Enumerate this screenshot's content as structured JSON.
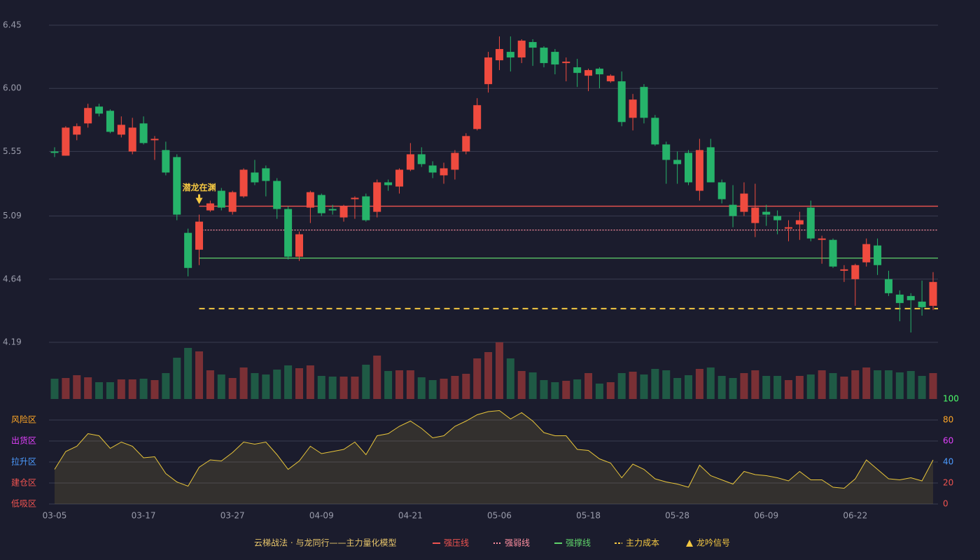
{
  "chart_data": {
    "type": "candlestick",
    "title": "云梯战法 · 与龙同行——主力量化模型",
    "categories": [
      "03-05",
      null,
      null,
      null,
      null,
      null,
      null,
      null,
      "03-17",
      null,
      null,
      null,
      null,
      null,
      null,
      null,
      "03-27",
      null,
      null,
      null,
      null,
      null,
      null,
      null,
      "04-09",
      null,
      null,
      null,
      null,
      null,
      null,
      null,
      "04-21",
      null,
      null,
      null,
      null,
      null,
      null,
      null,
      "05-06",
      null,
      null,
      null,
      null,
      null,
      null,
      null,
      "05-18",
      null,
      null,
      null,
      null,
      null,
      null,
      null,
      "05-28",
      null,
      null,
      null,
      null,
      null,
      null,
      null,
      "06-09",
      null,
      null,
      null,
      null,
      null,
      null,
      null,
      "06-22",
      null,
      null,
      null,
      null,
      null,
      null,
      null
    ],
    "open": [
      5.55,
      5.52,
      5.67,
      5.75,
      5.87,
      5.84,
      5.67,
      5.55,
      5.75,
      5.63,
      5.56,
      5.51,
      4.97,
      4.85,
      5.13,
      5.27,
      5.12,
      5.23,
      5.4,
      5.43,
      5.34,
      5.14,
      4.8,
      5.15,
      5.24,
      5.14,
      5.08,
      5.21,
      5.23,
      5.12,
      5.33,
      5.3,
      5.42,
      5.53,
      5.45,
      5.38,
      5.42,
      5.55,
      5.71,
      6.03,
      6.2,
      6.26,
      6.22,
      6.33,
      6.29,
      6.26,
      6.18,
      6.15,
      6.09,
      6.14,
      6.05,
      6.05,
      5.79,
      6.01,
      5.79,
      5.6,
      5.49,
      5.54,
      5.27,
      5.58,
      5.33,
      5.17,
      5.12,
      5.04,
      5.12,
      5.09,
      5.0,
      5.03,
      5.15,
      4.92,
      4.92,
      4.7,
      4.64,
      4.76,
      4.88,
      4.64,
      4.53,
      4.52,
      4.48,
      4.45
    ],
    "high": [
      5.58,
      5.73,
      5.75,
      5.89,
      5.89,
      5.85,
      5.8,
      5.79,
      5.8,
      5.66,
      5.62,
      5.53,
      5.0,
      5.1,
      5.2,
      5.29,
      5.27,
      5.43,
      5.49,
      5.45,
      5.36,
      5.16,
      4.98,
      5.27,
      5.25,
      5.17,
      5.17,
      5.23,
      5.25,
      5.35,
      5.35,
      5.43,
      5.61,
      5.58,
      5.48,
      5.47,
      5.56,
      5.68,
      5.93,
      6.26,
      6.37,
      6.37,
      6.35,
      6.35,
      6.3,
      6.28,
      6.22,
      6.21,
      6.14,
      6.15,
      6.1,
      6.12,
      5.96,
      6.03,
      5.81,
      5.62,
      5.55,
      5.56,
      5.64,
      5.64,
      5.35,
      5.31,
      5.33,
      5.32,
      5.17,
      5.13,
      5.06,
      5.12,
      5.2,
      4.95,
      4.93,
      4.74,
      4.75,
      4.93,
      4.93,
      4.7,
      4.56,
      4.54,
      4.63,
      4.69
    ],
    "low": [
      5.51,
      5.52,
      5.63,
      5.72,
      5.8,
      5.68,
      5.65,
      5.53,
      5.6,
      5.49,
      5.38,
      5.06,
      4.66,
      4.74,
      5.12,
      5.13,
      5.1,
      5.22,
      5.31,
      5.23,
      5.07,
      4.78,
      4.77,
      5.04,
      5.09,
      5.1,
      5.05,
      5.07,
      5.05,
      5.08,
      5.27,
      5.25,
      5.41,
      5.44,
      5.36,
      5.32,
      5.35,
      5.53,
      5.7,
      5.97,
      6.13,
      6.12,
      6.18,
      6.16,
      6.15,
      6.1,
      6.05,
      6.01,
      5.98,
      6.0,
      6.04,
      5.73,
      5.7,
      5.75,
      5.59,
      5.32,
      5.32,
      5.31,
      5.2,
      5.33,
      5.18,
      5.01,
      5.09,
      4.94,
      5.02,
      4.96,
      4.91,
      4.92,
      4.91,
      4.75,
      4.72,
      4.62,
      4.45,
      4.73,
      4.67,
      4.52,
      4.34,
      4.26,
      4.38,
      4.42
    ],
    "close": [
      5.54,
      5.72,
      5.73,
      5.86,
      5.82,
      5.69,
      5.74,
      5.72,
      5.61,
      5.64,
      5.4,
      5.1,
      4.72,
      5.05,
      5.18,
      5.15,
      5.26,
      5.42,
      5.33,
      5.34,
      5.14,
      4.8,
      4.96,
      5.26,
      5.11,
      5.13,
      5.16,
      5.22,
      5.06,
      5.33,
      5.31,
      5.42,
      5.53,
      5.46,
      5.4,
      5.43,
      5.54,
      5.66,
      5.88,
      6.22,
      6.28,
      6.22,
      6.34,
      6.29,
      6.18,
      6.17,
      6.19,
      6.11,
      6.13,
      6.1,
      6.09,
      5.76,
      5.92,
      5.79,
      5.6,
      5.49,
      5.46,
      5.33,
      5.56,
      5.33,
      5.21,
      5.09,
      5.25,
      5.15,
      5.1,
      5.06,
      5.01,
      5.06,
      4.93,
      4.93,
      4.73,
      4.71,
      4.74,
      4.89,
      4.74,
      4.54,
      4.47,
      4.49,
      4.44,
      4.62
    ],
    "up_color": "#ef4b3f",
    "down_color": "#26b36a",
    "volume": [
      29,
      30,
      34,
      31,
      24,
      24,
      28,
      28,
      29,
      27,
      37,
      59,
      73,
      68,
      41,
      35,
      30,
      45,
      37,
      35,
      42,
      48,
      44,
      48,
      33,
      32,
      32,
      32,
      49,
      62,
      40,
      41,
      41,
      31,
      27,
      29,
      33,
      36,
      58,
      67,
      81,
      58,
      40,
      38,
      27,
      24,
      26,
      28,
      37,
      22,
      24,
      37,
      39,
      35,
      43,
      41,
      30,
      34,
      43,
      45,
      33,
      30,
      37,
      41,
      33,
      33,
      27,
      33,
      35,
      41,
      37,
      32,
      41,
      45,
      41,
      41,
      38,
      40,
      33,
      37
    ],
    "volume_up_color": "#7a3035",
    "volume_down_color": "#1f5a45",
    "ylim": [
      4.19,
      6.45
    ],
    "yticks": [
      4.19,
      4.64,
      5.09,
      5.55,
      {
        "value": 6,
        "label": "6.00"
      },
      6.45
    ],
    "grid": true,
    "levels": [
      {
        "name": "强压线",
        "value": 5.16,
        "color": "#ef5350",
        "style": "solid"
      },
      {
        "name": "强弱线",
        "value": 4.99,
        "color": "#ff8fa0",
        "style": "dotted"
      },
      {
        "name": "强撑线",
        "value": 4.79,
        "color": "#5fd36a",
        "style": "solid"
      },
      {
        "name": "主力成本",
        "value": 4.43,
        "color": "#f5c842",
        "style": "dashed"
      }
    ],
    "signal": {
      "name": "龙吟信号",
      "label": "潜龙在渊",
      "category_index": 13,
      "color": "#f5c842"
    },
    "oscillator": {
      "values": [
        33,
        50,
        55,
        67,
        65,
        53,
        59,
        55,
        44,
        45,
        29,
        21,
        17,
        35,
        42,
        41,
        49,
        59,
        57,
        59,
        47,
        33,
        41,
        55,
        48,
        50,
        52,
        59,
        47,
        65,
        67,
        74,
        79,
        72,
        63,
        65,
        74,
        79,
        85,
        88,
        89,
        81,
        87,
        79,
        68,
        65,
        65,
        52,
        51,
        43,
        39,
        25,
        38,
        33,
        24,
        21,
        19,
        16,
        37,
        27,
        23,
        19,
        31,
        28,
        27,
        25,
        22,
        31,
        23,
        23,
        16,
        15,
        24,
        42,
        33,
        24,
        23,
        25,
        22,
        42
      ],
      "color": "#e8c53a",
      "ylim": [
        0,
        100
      ],
      "yticks": [
        0,
        20,
        40,
        60,
        80,
        100
      ],
      "ytick_colors": [
        "#ef5350",
        "#ef5350",
        "#4c9bff",
        "#e040fb",
        "#ffa726",
        "#4cff6a"
      ],
      "zones": [
        {
          "label": "低吸区",
          "value": 0,
          "color": "#ef5350"
        },
        {
          "label": "建仓区",
          "value": 20,
          "color": "#ef5350"
        },
        {
          "label": "拉升区",
          "value": 40,
          "color": "#4c9bff"
        },
        {
          "label": "出货区",
          "value": 60,
          "color": "#e040fb"
        },
        {
          "label": "风险区",
          "value": 80,
          "color": "#ffa726"
        }
      ]
    }
  }
}
